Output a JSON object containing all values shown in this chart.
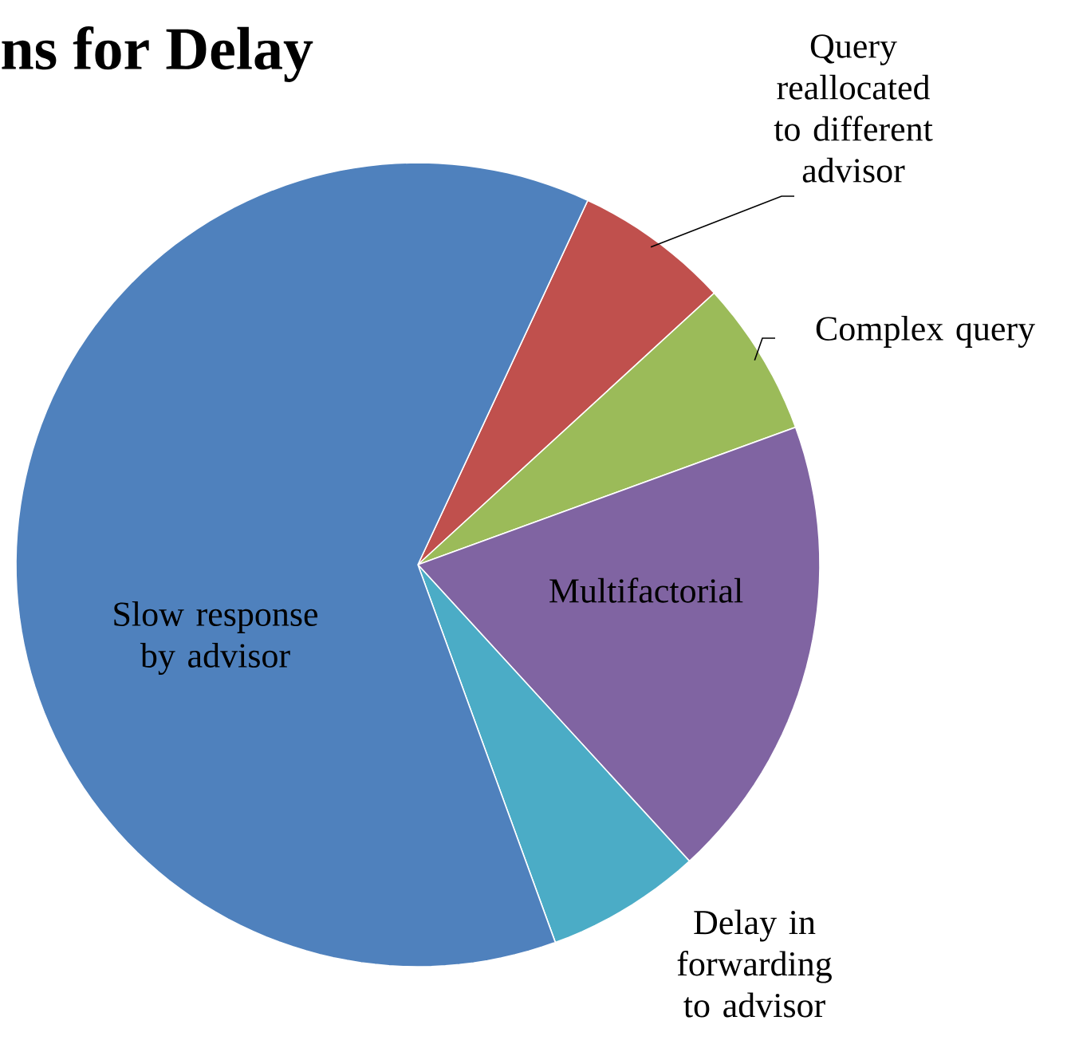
{
  "chart_data": {
    "type": "pie",
    "title": "ns for Delay",
    "categories": [
      "Query reallocated to different advisor",
      "Complex query",
      "Multifactorial",
      "Delay in forwarding to advisor",
      "Slow response by advisor"
    ],
    "values": [
      6.25,
      6.25,
      18.75,
      6.25,
      62.5
    ],
    "colors": [
      "#c0504d",
      "#9bbb59",
      "#8064a2",
      "#4bacc6",
      "#4f81bd"
    ]
  }
}
